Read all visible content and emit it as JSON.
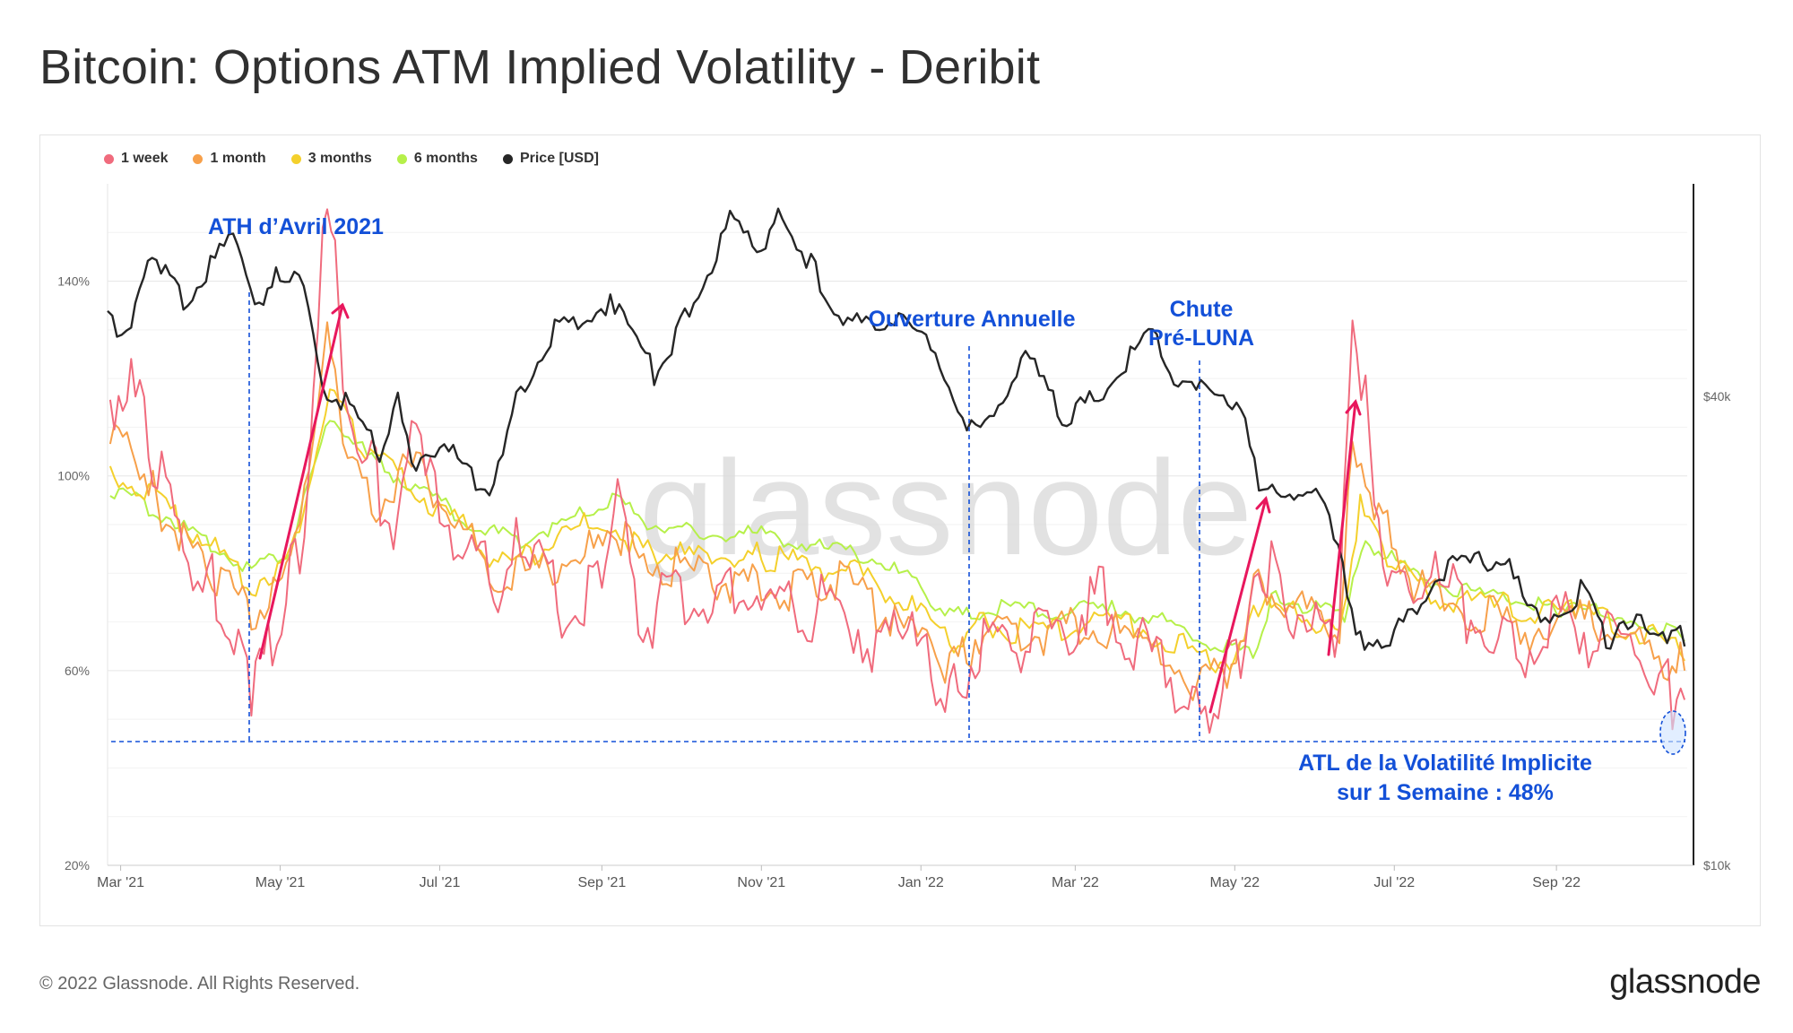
{
  "title": "Bitcoin: Options ATM Implied Volatility - Deribit",
  "footer": "© 2022 Glassnode. All Rights Reserved.",
  "brand": "glassnode",
  "watermark": "glassnode",
  "colors": {
    "1 week": "#f06b7d",
    "1 month": "#f7a04a",
    "3 months": "#f4d02c",
    "6 months": "#b6f04a",
    "price": "#262626",
    "annotation": "#1350d8",
    "arrow": "#e8175d"
  },
  "chart_data": {
    "type": "line",
    "legend_position": "top-left",
    "grid": true,
    "x_ticks": [
      "Mar '21",
      "May '21",
      "Jul '21",
      "Sep '21",
      "Nov '21",
      "Jan '22",
      "Mar '22",
      "May '22",
      "Jul '22",
      "Sep '22"
    ],
    "x_range": [
      "2021-02-24",
      "2022-10-21"
    ],
    "y_left": {
      "ticks": [
        "20%",
        "60%",
        "100%",
        "140%"
      ],
      "range": [
        20,
        160
      ]
    },
    "y_right": {
      "ticks": [
        "$10k",
        "$40k"
      ],
      "scale": "log",
      "range": [
        10000,
        75000
      ]
    },
    "series": [
      {
        "name": "1 week",
        "points": [
          [
            "2021-02-25",
            112
          ],
          [
            "2021-03-05",
            115
          ],
          [
            "2021-03-15",
            98
          ],
          [
            "2021-03-25",
            82
          ],
          [
            "2021-04-05",
            74
          ],
          [
            "2021-04-15",
            62
          ],
          [
            "2021-04-20",
            52
          ],
          [
            "2021-04-28",
            64
          ],
          [
            "2021-05-05",
            75
          ],
          [
            "2021-05-12",
            92
          ],
          [
            "2021-05-19",
            158
          ],
          [
            "2021-05-25",
            118
          ],
          [
            "2021-06-05",
            98
          ],
          [
            "2021-06-15",
            84
          ],
          [
            "2021-06-22",
            110
          ],
          [
            "2021-07-01",
            90
          ],
          [
            "2021-07-15",
            80
          ],
          [
            "2021-07-25",
            70
          ],
          [
            "2021-08-01",
            86
          ],
          [
            "2021-08-15",
            70
          ],
          [
            "2021-09-01",
            72
          ],
          [
            "2021-09-07",
            92
          ],
          [
            "2021-09-15",
            66
          ],
          [
            "2021-10-01",
            72
          ],
          [
            "2021-10-15",
            70
          ],
          [
            "2021-11-01",
            72
          ],
          [
            "2021-11-15",
            68
          ],
          [
            "2021-12-01",
            70
          ],
          [
            "2021-12-15",
            62
          ],
          [
            "2021-12-25",
            66
          ],
          [
            "2022-01-05",
            56
          ],
          [
            "2022-01-12",
            50
          ],
          [
            "2022-01-25",
            62
          ],
          [
            "2022-02-10",
            62
          ],
          [
            "2022-02-25",
            64
          ],
          [
            "2022-03-10",
            72
          ],
          [
            "2022-03-25",
            62
          ],
          [
            "2022-04-10",
            54
          ],
          [
            "2022-04-18",
            48
          ],
          [
            "2022-04-28",
            54
          ],
          [
            "2022-05-05",
            60
          ],
          [
            "2022-05-10",
            82
          ],
          [
            "2022-05-20",
            70
          ],
          [
            "2022-06-01",
            66
          ],
          [
            "2022-06-10",
            64
          ],
          [
            "2022-06-15",
            130
          ],
          [
            "2022-06-20",
            110
          ],
          [
            "2022-06-30",
            72
          ],
          [
            "2022-07-15",
            76
          ],
          [
            "2022-08-01",
            66
          ],
          [
            "2022-08-15",
            60
          ],
          [
            "2022-09-01",
            66
          ],
          [
            "2022-09-15",
            64
          ],
          [
            "2022-10-01",
            60
          ],
          [
            "2022-10-12",
            54
          ],
          [
            "2022-10-17",
            48
          ],
          [
            "2022-10-20",
            54
          ]
        ]
      },
      {
        "name": "1 month",
        "points": [
          [
            "2021-02-25",
            105
          ],
          [
            "2021-03-05",
            106
          ],
          [
            "2021-03-15",
            92
          ],
          [
            "2021-03-25",
            85
          ],
          [
            "2021-04-05",
            78
          ],
          [
            "2021-04-20",
            70
          ],
          [
            "2021-05-05",
            78
          ],
          [
            "2021-05-19",
            128
          ],
          [
            "2021-05-25",
            106
          ],
          [
            "2021-06-05",
            92
          ],
          [
            "2021-06-22",
            100
          ],
          [
            "2021-07-10",
            86
          ],
          [
            "2021-07-25",
            76
          ],
          [
            "2021-08-15",
            80
          ],
          [
            "2021-09-10",
            84
          ],
          [
            "2021-10-01",
            78
          ],
          [
            "2021-10-15",
            76
          ],
          [
            "2021-11-01",
            76
          ],
          [
            "2021-11-15",
            74
          ],
          [
            "2021-12-01",
            76
          ],
          [
            "2021-12-15",
            70
          ],
          [
            "2022-01-05",
            62
          ],
          [
            "2022-01-12",
            58
          ],
          [
            "2022-01-25",
            66
          ],
          [
            "2022-02-10",
            64
          ],
          [
            "2022-03-01",
            68
          ],
          [
            "2022-03-25",
            64
          ],
          [
            "2022-04-15",
            56
          ],
          [
            "2022-04-28",
            57
          ],
          [
            "2022-05-10",
            76
          ],
          [
            "2022-05-25",
            70
          ],
          [
            "2022-06-10",
            66
          ],
          [
            "2022-06-15",
            106
          ],
          [
            "2022-06-25",
            90
          ],
          [
            "2022-07-10",
            74
          ],
          [
            "2022-08-01",
            70
          ],
          [
            "2022-08-20",
            66
          ],
          [
            "2022-09-10",
            68
          ],
          [
            "2022-10-01",
            64
          ],
          [
            "2022-10-12",
            58
          ],
          [
            "2022-10-20",
            60
          ]
        ]
      },
      {
        "name": "3 months",
        "points": [
          [
            "2021-02-25",
            100
          ],
          [
            "2021-03-15",
            94
          ],
          [
            "2021-04-01",
            86
          ],
          [
            "2021-04-20",
            76
          ],
          [
            "2021-05-05",
            82
          ],
          [
            "2021-05-20",
            116
          ],
          [
            "2021-06-01",
            104
          ],
          [
            "2021-06-20",
            96
          ],
          [
            "2021-07-10",
            88
          ],
          [
            "2021-07-25",
            80
          ],
          [
            "2021-08-10",
            84
          ],
          [
            "2021-09-01",
            90
          ],
          [
            "2021-09-15",
            84
          ],
          [
            "2021-10-01",
            82
          ],
          [
            "2021-11-01",
            82
          ],
          [
            "2021-11-20",
            80
          ],
          [
            "2021-12-10",
            78
          ],
          [
            "2022-01-01",
            70
          ],
          [
            "2022-01-12",
            64
          ],
          [
            "2022-01-25",
            68
          ],
          [
            "2022-02-15",
            66
          ],
          [
            "2022-03-10",
            70
          ],
          [
            "2022-04-01",
            66
          ],
          [
            "2022-04-20",
            61
          ],
          [
            "2022-05-01",
            60
          ],
          [
            "2022-05-10",
            72
          ],
          [
            "2022-05-25",
            70
          ],
          [
            "2022-06-10",
            66
          ],
          [
            "2022-06-18",
            92
          ],
          [
            "2022-06-30",
            80
          ],
          [
            "2022-07-15",
            74
          ],
          [
            "2022-08-10",
            72
          ],
          [
            "2022-09-10",
            70
          ],
          [
            "2022-10-01",
            67
          ],
          [
            "2022-10-20",
            62
          ]
        ]
      },
      {
        "name": "6 months",
        "points": [
          [
            "2021-02-25",
            96
          ],
          [
            "2021-03-15",
            92
          ],
          [
            "2021-04-01",
            86
          ],
          [
            "2021-04-20",
            80
          ],
          [
            "2021-05-05",
            84
          ],
          [
            "2021-05-20",
            112
          ],
          [
            "2021-06-05",
            102
          ],
          [
            "2021-06-25",
            96
          ],
          [
            "2021-07-15",
            88
          ],
          [
            "2021-08-01",
            86
          ],
          [
            "2021-08-20",
            90
          ],
          [
            "2021-09-05",
            94
          ],
          [
            "2021-09-20",
            89
          ],
          [
            "2021-10-10",
            87
          ],
          [
            "2021-11-01",
            87
          ],
          [
            "2021-11-25",
            84
          ],
          [
            "2021-12-15",
            82
          ],
          [
            "2022-01-01",
            76
          ],
          [
            "2022-01-12",
            70
          ],
          [
            "2022-01-30",
            72
          ],
          [
            "2022-02-20",
            71
          ],
          [
            "2022-03-15",
            72
          ],
          [
            "2022-04-05",
            69
          ],
          [
            "2022-04-25",
            64
          ],
          [
            "2022-05-08",
            62
          ],
          [
            "2022-05-15",
            74
          ],
          [
            "2022-06-01",
            72
          ],
          [
            "2022-06-12",
            70
          ],
          [
            "2022-06-20",
            86
          ],
          [
            "2022-07-10",
            78
          ],
          [
            "2022-08-01",
            75
          ],
          [
            "2022-09-01",
            72
          ],
          [
            "2022-10-01",
            70
          ],
          [
            "2022-10-20",
            66
          ]
        ]
      },
      {
        "name": "Price [USD]",
        "axis": "right",
        "points": [
          [
            "2021-02-24",
            49000
          ],
          [
            "2021-03-05",
            48000
          ],
          [
            "2021-03-13",
            61000
          ],
          [
            "2021-03-25",
            52000
          ],
          [
            "2021-04-13",
            63500
          ],
          [
            "2021-04-23",
            50000
          ],
          [
            "2021-05-01",
            57000
          ],
          [
            "2021-05-10",
            56000
          ],
          [
            "2021-05-19",
            38000
          ],
          [
            "2021-05-26",
            39000
          ],
          [
            "2021-06-08",
            33000
          ],
          [
            "2021-06-15",
            40000
          ],
          [
            "2021-06-22",
            31000
          ],
          [
            "2021-07-01",
            34000
          ],
          [
            "2021-07-20",
            29800
          ],
          [
            "2021-08-01",
            40000
          ],
          [
            "2021-08-14",
            47500
          ],
          [
            "2021-09-06",
            52000
          ],
          [
            "2021-09-21",
            42000
          ],
          [
            "2021-10-01",
            48000
          ],
          [
            "2021-10-20",
            65500
          ],
          [
            "2021-11-01",
            61000
          ],
          [
            "2021-11-09",
            67500
          ],
          [
            "2021-11-20",
            58000
          ],
          [
            "2021-12-04",
            48000
          ],
          [
            "2021-12-27",
            50800
          ],
          [
            "2022-01-10",
            41500
          ],
          [
            "2022-01-22",
            35000
          ],
          [
            "2022-02-10",
            44500
          ],
          [
            "2022-02-24",
            37000
          ],
          [
            "2022-03-10",
            39000
          ],
          [
            "2022-03-29",
            47500
          ],
          [
            "2022-04-11",
            40000
          ],
          [
            "2022-04-25",
            40000
          ],
          [
            "2022-05-05",
            37000
          ],
          [
            "2022-05-12",
            29000
          ],
          [
            "2022-06-01",
            30500
          ],
          [
            "2022-06-13",
            22500
          ],
          [
            "2022-06-18",
            19000
          ],
          [
            "2022-07-01",
            19500
          ],
          [
            "2022-07-20",
            23500
          ],
          [
            "2022-08-14",
            24400
          ],
          [
            "2022-08-26",
            20000
          ],
          [
            "2022-09-12",
            22300
          ],
          [
            "2022-09-20",
            19000
          ],
          [
            "2022-10-05",
            20300
          ],
          [
            "2022-10-20",
            19100
          ]
        ]
      }
    ],
    "annotations": {
      "ath": "ATH d’Avril 2021",
      "yearly_open": "Ouverture Annuelle",
      "pre_luna_1": "Chute",
      "pre_luna_2": "Pré-LUNA",
      "atl_1": "ATL de la Volatilité Implicite",
      "atl_2": "sur 1 Semaine : 48%"
    }
  }
}
